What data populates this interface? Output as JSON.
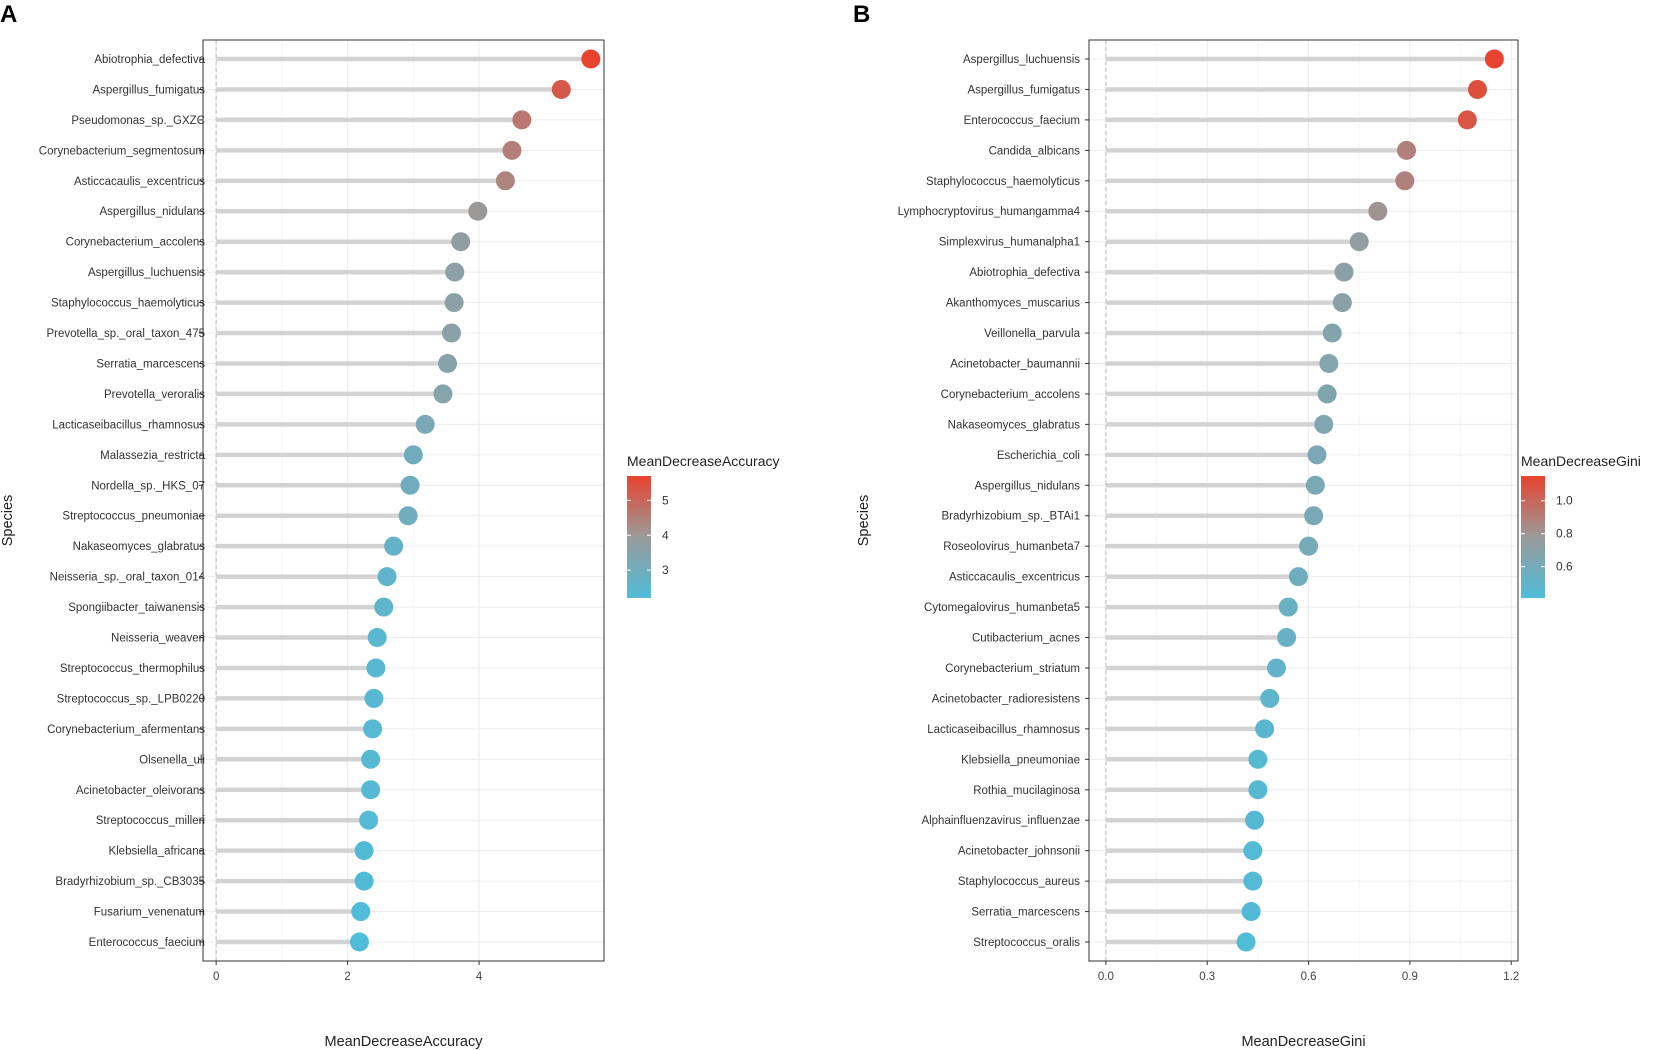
{
  "chart_data": [
    {
      "type": "lollipop",
      "panel": "A",
      "xlabel": "MeanDecreaseAccuracy",
      "ylabel": "Species",
      "xlim": [
        -0.2,
        5.9
      ],
      "xticks": [
        "0",
        "2",
        "4"
      ],
      "xtick_values": [
        0,
        2,
        4
      ],
      "legend": {
        "title": "MeanDecreaseAccuracy",
        "ticks": [
          "5",
          "4",
          "3"
        ],
        "tick_values": [
          5,
          4,
          3
        ],
        "range": [
          2.2,
          5.7
        ],
        "position": "right"
      },
      "categories": [
        "Abiotrophia_defectiva",
        "Aspergillus_fumigatus",
        "Pseudomonas_sp._GXZC",
        "Corynebacterium_segmentosum",
        "Asticcacaulis_excentricus",
        "Aspergillus_nidulans",
        "Corynebacterium_accolens",
        "Aspergillus_luchuensis",
        "Staphylococcus_haemolyticus",
        "Prevotella_sp._oral_taxon_475",
        "Serratia_marcescens",
        "Prevotella_veroralis",
        "Lacticaseibacillus_rhamnosus",
        "Malassezia_restricta",
        "Nordella_sp._HKS_07",
        "Streptococcus_pneumoniae",
        "Nakaseomyces_glabratus",
        "Neisseria_sp._oral_taxon_014",
        "Spongiibacter_taiwanensis",
        "Neisseria_weaveri",
        "Streptococcus_thermophilus",
        "Streptococcus_sp._LPB0220",
        "Corynebacterium_afermentans",
        "Olsenella_uli",
        "Acinetobacter_oleivorans",
        "Streptococcus_milleri",
        "Klebsiella_africana",
        "Bradyrhizobium_sp._CB3035",
        "Fusarium_venenatum",
        "Enterococcus_faecium"
      ],
      "values": [
        5.7,
        5.25,
        4.65,
        4.5,
        4.4,
        3.98,
        3.72,
        3.63,
        3.62,
        3.58,
        3.52,
        3.45,
        3.18,
        3.0,
        2.95,
        2.92,
        2.7,
        2.6,
        2.55,
        2.45,
        2.43,
        2.4,
        2.38,
        2.35,
        2.35,
        2.32,
        2.25,
        2.25,
        2.2,
        2.18
      ]
    },
    {
      "type": "lollipop",
      "panel": "B",
      "xlabel": "MeanDecreaseGini",
      "ylabel": "Species",
      "xlim": [
        -0.05,
        1.22
      ],
      "xticks": [
        "0.0",
        "0.3",
        "0.6",
        "0.9",
        "1.2"
      ],
      "xtick_values": [
        0,
        0.3,
        0.6,
        0.9,
        1.2
      ],
      "legend": {
        "title": "MeanDecreaseGini",
        "ticks": [
          "1.0",
          "0.8",
          "0.6"
        ],
        "tick_values": [
          1.0,
          0.8,
          0.6
        ],
        "range": [
          0.41,
          1.15
        ],
        "position": "right"
      },
      "categories": [
        "Aspergillus_luchuensis",
        "Aspergillus_fumigatus",
        "Enterococcus_faecium",
        "Candida_albicans",
        "Staphylococcus_haemolyticus",
        "Lymphocryptovirus_humangamma4",
        "Simplexvirus_humanalpha1",
        "Abiotrophia_defectiva",
        "Akanthomyces_muscarius",
        "Veillonella_parvula",
        "Acinetobacter_baumannii",
        "Corynebacterium_accolens",
        "Nakaseomyces_glabratus",
        "Escherichia_coli",
        "Aspergillus_nidulans",
        "Bradyrhizobium_sp._BTAi1",
        "Roseolovirus_humanbeta7",
        "Asticcacaulis_excentricus",
        "Cytomegalovirus_humanbeta5",
        "Cutibacterium_acnes",
        "Corynebacterium_striatum",
        "Acinetobacter_radioresistens",
        "Lacticaseibacillus_rhamnosus",
        "Klebsiella_pneumoniae",
        "Rothia_mucilaginosa",
        "Alphainfluenzavirus_influenzae",
        "Acinetobacter_johnsonii",
        "Staphylococcus_aureus",
        "Serratia_marcescens",
        "Streptococcus_oralis"
      ],
      "values": [
        1.15,
        1.1,
        1.07,
        0.89,
        0.885,
        0.805,
        0.75,
        0.705,
        0.7,
        0.67,
        0.66,
        0.655,
        0.645,
        0.625,
        0.62,
        0.615,
        0.6,
        0.57,
        0.54,
        0.535,
        0.505,
        0.485,
        0.47,
        0.45,
        0.45,
        0.44,
        0.435,
        0.435,
        0.43,
        0.415
      ]
    }
  ],
  "colors": {
    "low": "#4fbcd9",
    "mid": "#9a9a9a",
    "high": "#e8432f",
    "stem": "#d3d3d3",
    "grid_major": "#ececec",
    "grid_minor": "#f6f6f6",
    "frame": "#333333",
    "zero_line": "#bbbbbb"
  }
}
